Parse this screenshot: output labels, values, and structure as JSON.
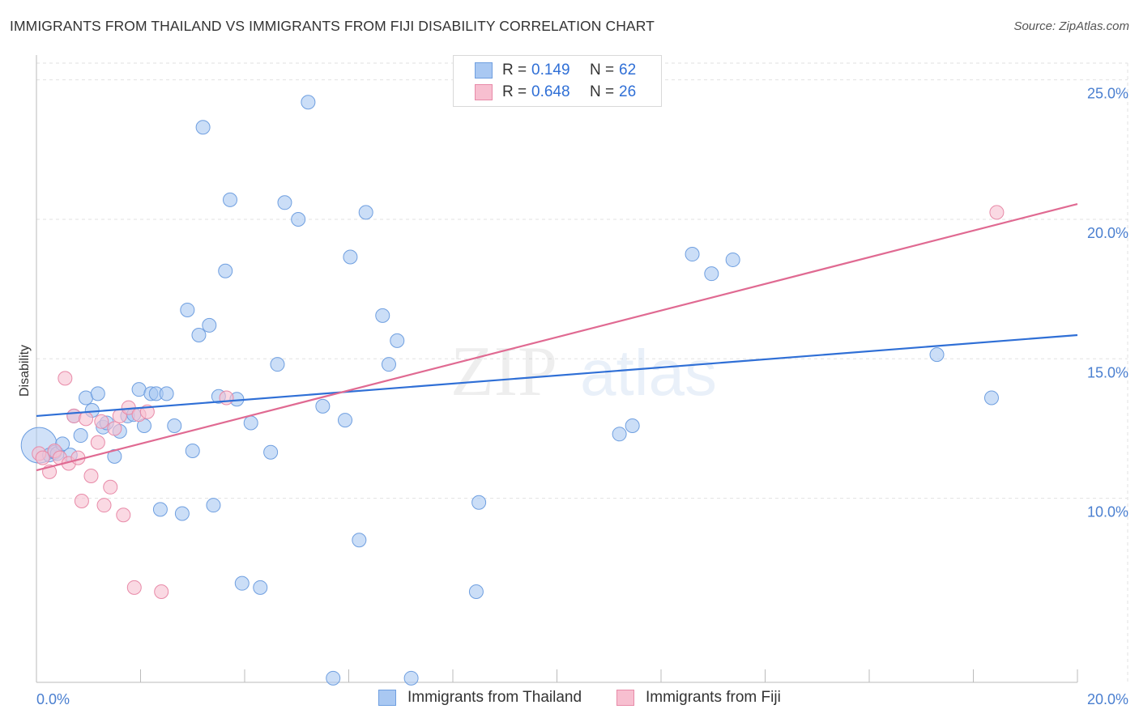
{
  "header": {
    "title": "IMMIGRANTS FROM THAILAND VS IMMIGRANTS FROM FIJI DISABILITY CORRELATION CHART",
    "source": "Source: ZipAtlas.com"
  },
  "watermark": {
    "zip": "ZIP",
    "atlas": "atlas"
  },
  "legend": {
    "rows": [
      {
        "r_label": "R =",
        "r_value": "0.149",
        "n_label": "N =",
        "n_value": "62"
      },
      {
        "r_label": "R =",
        "r_value": "0.648",
        "n_label": "N =",
        "n_value": "26"
      }
    ]
  },
  "colors": {
    "thailand_fill": "#a9c8f2",
    "thailand_stroke": "#6f9fe0",
    "thailand_line": "#2f6fd6",
    "fiji_fill": "#f7bfd0",
    "fiji_stroke": "#e88aa8",
    "fiji_line": "#e06a92",
    "tick_text": "#4a7fd0"
  },
  "chart_data": {
    "type": "scatter",
    "title": "IMMIGRANTS FROM THAILAND VS IMMIGRANTS FROM FIJI DISABILITY CORRELATION CHART",
    "xlabel": "",
    "ylabel": "Disability",
    "xlim": [
      0,
      20
    ],
    "ylim": [
      3.4,
      25.6
    ],
    "x_tick_labels": [
      "0.0%",
      "20.0%"
    ],
    "y_ticks": [
      10,
      15,
      20,
      25
    ],
    "y_tick_labels": [
      "10.0%",
      "15.0%",
      "20.0%",
      "25.0%"
    ],
    "grid": true,
    "legend_position": "top-center",
    "series": [
      {
        "name": "Immigrants from Thailand",
        "r": 0.149,
        "n": 62,
        "trend": {
          "x": [
            0,
            20
          ],
          "y": [
            12.95,
            15.85
          ]
        },
        "points": [
          {
            "x": 0.05,
            "y": 11.9,
            "big": true
          },
          {
            "x": 0.25,
            "y": 11.55
          },
          {
            "x": 0.35,
            "y": 11.65
          },
          {
            "x": 0.4,
            "y": 11.6
          },
          {
            "x": 0.5,
            "y": 11.95
          },
          {
            "x": 0.65,
            "y": 11.55
          },
          {
            "x": 0.72,
            "y": 12.95
          },
          {
            "x": 0.85,
            "y": 12.25
          },
          {
            "x": 0.95,
            "y": 13.6
          },
          {
            "x": 1.07,
            "y": 13.15
          },
          {
            "x": 1.18,
            "y": 13.75
          },
          {
            "x": 1.28,
            "y": 12.55
          },
          {
            "x": 1.35,
            "y": 12.7
          },
          {
            "x": 1.5,
            "y": 11.5
          },
          {
            "x": 1.6,
            "y": 12.4
          },
          {
            "x": 1.75,
            "y": 12.95
          },
          {
            "x": 1.87,
            "y": 13.0
          },
          {
            "x": 1.97,
            "y": 13.9
          },
          {
            "x": 2.07,
            "y": 12.6
          },
          {
            "x": 2.2,
            "y": 13.75
          },
          {
            "x": 2.3,
            "y": 13.75
          },
          {
            "x": 2.38,
            "y": 9.6
          },
          {
            "x": 2.5,
            "y": 13.75
          },
          {
            "x": 2.65,
            "y": 12.6
          },
          {
            "x": 2.8,
            "y": 9.45
          },
          {
            "x": 2.9,
            "y": 16.75
          },
          {
            "x": 3.0,
            "y": 11.7
          },
          {
            "x": 3.12,
            "y": 15.85
          },
          {
            "x": 3.2,
            "y": 23.3
          },
          {
            "x": 3.32,
            "y": 16.2
          },
          {
            "x": 3.4,
            "y": 9.75
          },
          {
            "x": 3.5,
            "y": 13.65
          },
          {
            "x": 3.63,
            "y": 18.15
          },
          {
            "x": 3.72,
            "y": 20.7
          },
          {
            "x": 3.85,
            "y": 13.55
          },
          {
            "x": 3.95,
            "y": 6.95
          },
          {
            "x": 4.12,
            "y": 12.7
          },
          {
            "x": 4.3,
            "y": 6.8
          },
          {
            "x": 4.5,
            "y": 11.65
          },
          {
            "x": 4.63,
            "y": 14.8
          },
          {
            "x": 4.77,
            "y": 20.6
          },
          {
            "x": 5.03,
            "y": 20.0
          },
          {
            "x": 5.22,
            "y": 24.2
          },
          {
            "x": 5.5,
            "y": 13.3
          },
          {
            "x": 5.7,
            "y": 3.55
          },
          {
            "x": 5.93,
            "y": 12.8
          },
          {
            "x": 6.03,
            "y": 18.65
          },
          {
            "x": 6.2,
            "y": 8.5
          },
          {
            "x": 6.33,
            "y": 20.25
          },
          {
            "x": 6.65,
            "y": 16.55
          },
          {
            "x": 6.77,
            "y": 14.8
          },
          {
            "x": 6.93,
            "y": 15.65
          },
          {
            "x": 7.2,
            "y": 3.55
          },
          {
            "x": 8.45,
            "y": 6.65
          },
          {
            "x": 8.5,
            "y": 9.85
          },
          {
            "x": 11.2,
            "y": 12.3
          },
          {
            "x": 11.45,
            "y": 12.6
          },
          {
            "x": 12.6,
            "y": 18.75
          },
          {
            "x": 12.97,
            "y": 18.05
          },
          {
            "x": 13.38,
            "y": 18.55
          },
          {
            "x": 17.3,
            "y": 15.15
          },
          {
            "x": 18.35,
            "y": 13.6
          }
        ]
      },
      {
        "name": "Immigrants from Fiji",
        "r": 0.648,
        "n": 26,
        "trend": {
          "x": [
            0,
            20
          ],
          "y": [
            11.0,
            20.55
          ]
        },
        "points": [
          {
            "x": 0.05,
            "y": 11.6
          },
          {
            "x": 0.12,
            "y": 11.45
          },
          {
            "x": 0.25,
            "y": 10.95
          },
          {
            "x": 0.35,
            "y": 11.7
          },
          {
            "x": 0.45,
            "y": 11.45
          },
          {
            "x": 0.55,
            "y": 14.3
          },
          {
            "x": 0.62,
            "y": 11.25
          },
          {
            "x": 0.72,
            "y": 12.95
          },
          {
            "x": 0.8,
            "y": 11.45
          },
          {
            "x": 0.87,
            "y": 9.9
          },
          {
            "x": 0.95,
            "y": 12.85
          },
          {
            "x": 1.05,
            "y": 10.8
          },
          {
            "x": 1.18,
            "y": 12.0
          },
          {
            "x": 1.25,
            "y": 12.75
          },
          {
            "x": 1.3,
            "y": 9.75
          },
          {
            "x": 1.42,
            "y": 10.4
          },
          {
            "x": 1.5,
            "y": 12.5
          },
          {
            "x": 1.6,
            "y": 12.95
          },
          {
            "x": 1.67,
            "y": 9.4
          },
          {
            "x": 1.77,
            "y": 13.25
          },
          {
            "x": 1.88,
            "y": 6.8
          },
          {
            "x": 1.97,
            "y": 13.0
          },
          {
            "x": 2.13,
            "y": 13.1
          },
          {
            "x": 2.4,
            "y": 6.65
          },
          {
            "x": 3.65,
            "y": 13.6
          },
          {
            "x": 18.45,
            "y": 20.25
          }
        ]
      }
    ]
  }
}
